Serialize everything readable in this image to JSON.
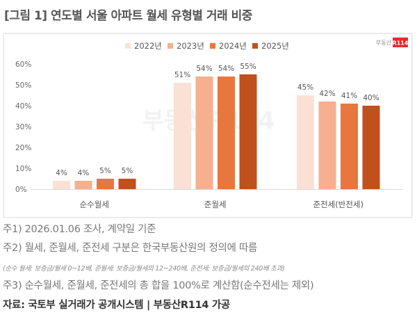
{
  "title": "[그림 1] 연도별 서울 아파트 월세 유형별 거래 비중",
  "logo": {
    "text": "부동산",
    "badge": "R114",
    "badge_color": "#e32b2b"
  },
  "watermark": "부동산R114",
  "chart_data": {
    "type": "bar",
    "categories": [
      "순수월세",
      "준월세",
      "준전세(반전세)"
    ],
    "series": [
      {
        "name": "2022년",
        "values": [
          4,
          51,
          45
        ],
        "color": "#fbe1d5"
      },
      {
        "name": "2023년",
        "values": [
          4,
          54,
          42
        ],
        "color": "#f4b08f"
      },
      {
        "name": "2024년",
        "values": [
          5,
          54,
          41
        ],
        "color": "#e8773f"
      },
      {
        "name": "2025년",
        "values": [
          5,
          55,
          40
        ],
        "color": "#c0501c"
      }
    ],
    "yticks": [
      "0%",
      "10%",
      "20%",
      "30%",
      "40%",
      "50%",
      "60%"
    ],
    "ylim": [
      0,
      60
    ],
    "grid": false,
    "legend": "top-center",
    "value_suffix": "%"
  },
  "notes": [
    "주1) 2026.01.06 조사, 계약일 기준",
    "주2) 월세, 준월세, 준전세 구분은 한국부동산원의 정의에 따름",
    "(순수 월세: 보증금/월세 0~12배, 준월세: 보증금/월세의 12~240배, 준전세: 보증금/월세의 240배 초과)",
    "주3) 순수월세, 준월세, 준전세의 총 합을 100%로 계산함(순수전세는 제외)"
  ],
  "source": "자료: 국토부 실거래가 공개시스템 | 부동산R114 가공"
}
